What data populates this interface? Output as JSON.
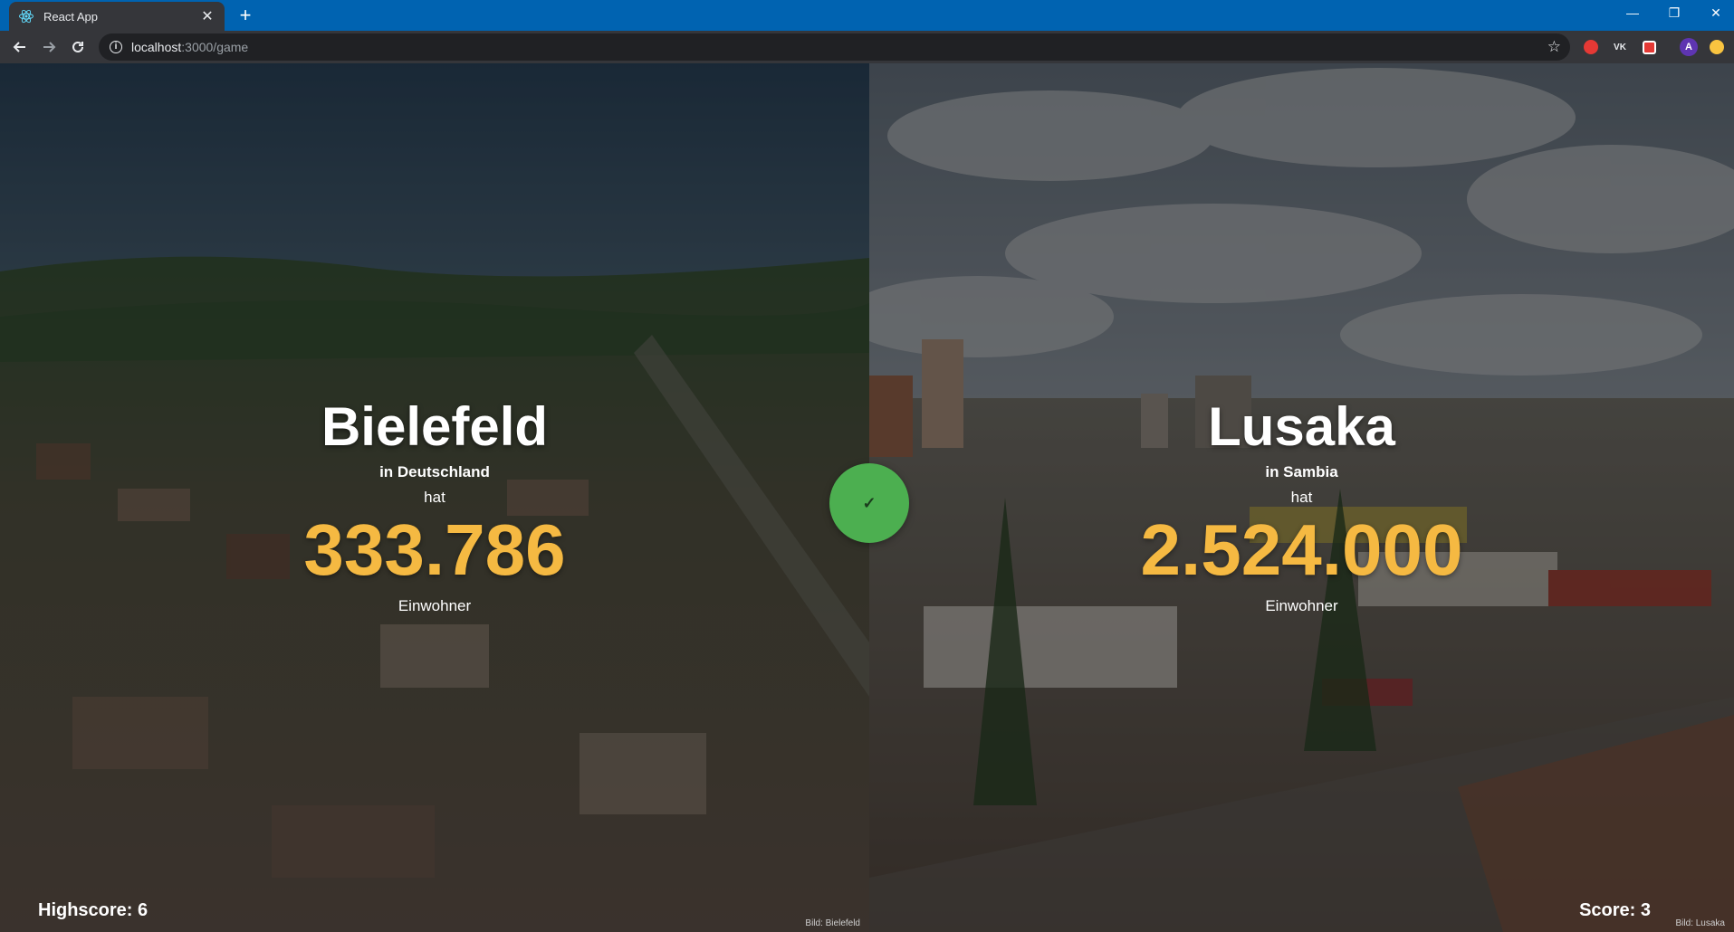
{
  "browser": {
    "tab_title": "React App",
    "tab_close": "✕",
    "new_tab": "+",
    "url_host": "localhost",
    "url_path": ":3000/game",
    "window_controls": {
      "minimize": "—",
      "restore": "❐",
      "close": "✕"
    },
    "extensions": [
      {
        "icon": "record-extension-icon",
        "color": "#e53935"
      },
      {
        "icon": "vk-extension-icon",
        "label": "VK"
      },
      {
        "icon": "puzzle-extension-icon",
        "color": "#e53935"
      },
      {
        "icon": "profile-avatar-icon",
        "label": "A",
        "color": "#5e35b1"
      },
      {
        "icon": "coin-extension-icon",
        "color": "#f9c440"
      }
    ]
  },
  "game": {
    "left": {
      "name": "Bielefeld",
      "country": "in Deutschland",
      "has": "hat",
      "population": "333.786",
      "unit": "Einwohner",
      "credit": "Bild: Bielefeld"
    },
    "right": {
      "name": "Lusaka",
      "country": "in Sambia",
      "has": "hat",
      "population": "2.524.000",
      "unit": "Einwohner",
      "credit": "Bild: Lusaka"
    },
    "result_icon": "✓",
    "highscore": "Highscore: 6",
    "score": "Score: 3",
    "colors": {
      "accent": "#f5b942",
      "correct": "#4caf50"
    }
  }
}
